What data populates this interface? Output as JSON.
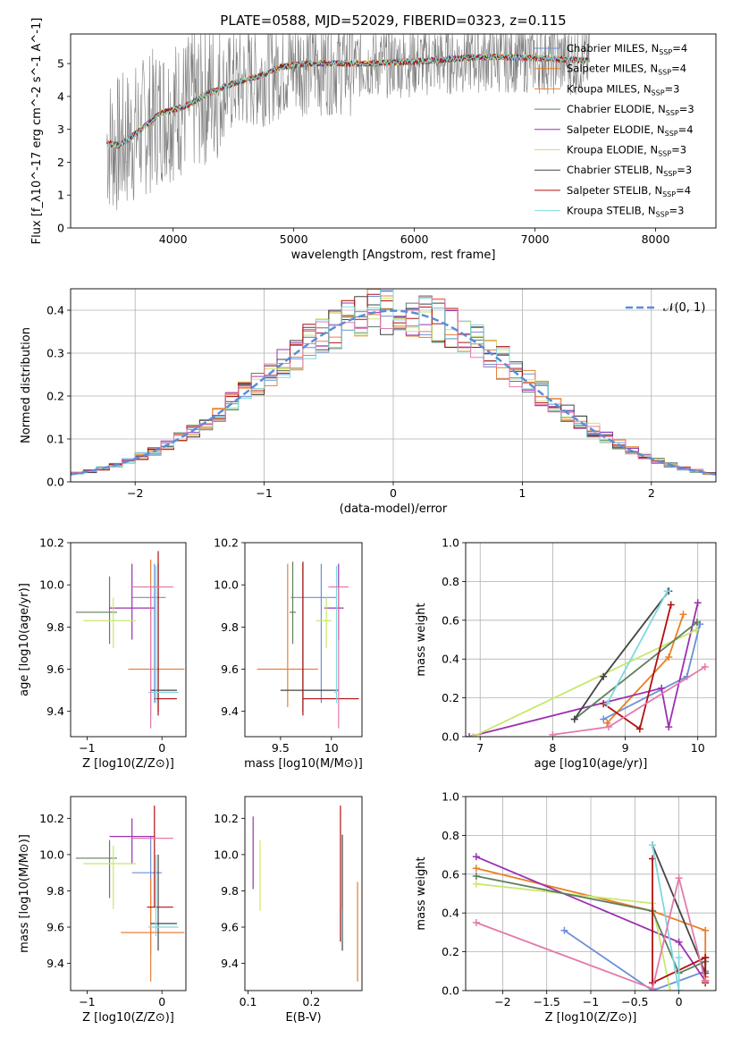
{
  "figure": {
    "title": "PLATE=0588, MJD=52029, FIBERID=0323, z=0.115"
  },
  "colors": {
    "Chabrier MILES": "#6b8fd6",
    "Salpeter MILES": "#e87f24",
    "Kroupa MILES": "#e8813a",
    "Chabrier ELODIE": "#5f7f5f",
    "Salpeter ELODIE": "#9b30b0",
    "Kroupa ELODIE": "#c8e86a",
    "Chabrier STELIB": "#444444",
    "Salpeter STELIB": "#b01010",
    "Kroupa STELIB": "#80d8e0",
    "extra_pink": "#e47aaa",
    "data": "#808080",
    "normal": "#5b8dd9"
  },
  "chart_data": [
    {
      "id": "spectrum",
      "type": "line",
      "xlabel": "wavelength [Angstrom, rest frame]",
      "ylabel": "Flux [f_λ10^-17 erg cm^-2 s^-1 A^-1]",
      "xlim": [
        3150,
        8500
      ],
      "ylim": [
        0,
        5.9
      ],
      "xticks": [
        4000,
        5000,
        6000,
        7000,
        8000
      ],
      "yticks": [
        0,
        1,
        2,
        3,
        4,
        5
      ],
      "legend_position": "upper-right",
      "legend": [
        {
          "name": "Chabrier MILES",
          "nssp": "4"
        },
        {
          "name": "Salpeter MILES",
          "nssp": "4"
        },
        {
          "name": "Kroupa MILES",
          "nssp": "3"
        },
        {
          "name": "Chabrier ELODIE",
          "nssp": "3"
        },
        {
          "name": "Salpeter ELODIE",
          "nssp": "4"
        },
        {
          "name": "Kroupa ELODIE",
          "nssp": "3"
        },
        {
          "name": "Chabrier STELIB",
          "nssp": "3"
        },
        {
          "name": "Salpeter STELIB",
          "nssp": "4"
        },
        {
          "name": "Kroupa STELIB",
          "nssp": "3"
        }
      ],
      "model_continuum": {
        "x": [
          3450,
          3550,
          3700,
          3800,
          3900,
          4000,
          4100,
          4300,
          4500,
          4700,
          4900,
          5100,
          5300,
          5600,
          5900,
          6200,
          6500,
          6800,
          7100,
          7400
        ],
        "y": [
          2.6,
          2.5,
          2.9,
          3.2,
          3.5,
          3.6,
          3.7,
          4.1,
          4.4,
          4.6,
          4.9,
          5.0,
          5.0,
          5.0,
          5.05,
          5.1,
          5.2,
          5.2,
          5.15,
          5.1
        ]
      },
      "data_range_x": [
        3450,
        7450
      ]
    },
    {
      "id": "residuals",
      "type": "histogram",
      "xlabel": "(data-model)/error",
      "ylabel": "Normed distribution",
      "xlim": [
        -2.5,
        2.5
      ],
      "ylim": [
        0,
        0.45
      ],
      "xticks": [
        -2,
        -1,
        0,
        1,
        2
      ],
      "yticks": [
        0.0,
        0.1,
        0.2,
        0.3,
        0.4
      ],
      "grid": true,
      "legend": "𝒩(0, 1)",
      "legend_position": "upper-right",
      "bin_width": 0.1,
      "bins_start": -2.5,
      "reference": "standard normal pdf"
    },
    {
      "id": "age_vs_Z",
      "type": "errorbar",
      "xlabel": "Z [log10(Z/Z⊙)]",
      "ylabel": "age [log10(age/yr)]",
      "xlim": [
        -1.22,
        0.32
      ],
      "ylim": [
        9.28,
        10.2
      ],
      "xticks": [
        -1,
        0
      ],
      "yticks": [
        9.4,
        9.6,
        9.8,
        10.0,
        10.2
      ],
      "points": [
        {
          "model": "Chabrier MILES",
          "x": -0.1,
          "y": 9.94,
          "xerr": [
            0.3,
            0.15
          ],
          "yerr": [
            0.5,
            0.16
          ]
        },
        {
          "model": "Kroupa MILES",
          "x": -0.15,
          "y": 9.6,
          "xerr": [
            0.3,
            0.45
          ],
          "yerr": [
            0.22,
            0.52
          ]
        },
        {
          "model": "Chabrier ELODIE",
          "x": -0.7,
          "y": 9.87,
          "xerr": [
            0.45,
            0.1
          ],
          "yerr": [
            0.15,
            0.17
          ]
        },
        {
          "model": "Salpeter ELODIE",
          "x": -0.4,
          "y": 9.89,
          "xerr": [
            0.3,
            0.3
          ],
          "yerr": [
            0.15,
            0.21
          ]
        },
        {
          "model": "Kroupa ELODIE",
          "x": -0.65,
          "y": 9.83,
          "xerr": [
            0.4,
            0.3
          ],
          "yerr": [
            0.13,
            0.11
          ]
        },
        {
          "model": "Chabrier STELIB",
          "x": -0.05,
          "y": 9.5,
          "xerr": [
            0.1,
            0.25
          ],
          "yerr": [
            0.1,
            0.6
          ]
        },
        {
          "model": "Salpeter STELIB",
          "x": -0.05,
          "y": 9.46,
          "xerr": [
            0.05,
            0.25
          ],
          "yerr": [
            0.08,
            0.7
          ]
        },
        {
          "model": "Kroupa STELIB",
          "x": -0.08,
          "y": 9.49,
          "xerr": [
            0.1,
            0.3
          ],
          "yerr": [
            0.05,
            0.6
          ]
        },
        {
          "model": "extra_pink",
          "x": -0.15,
          "y": 9.99,
          "xerr": [
            0.25,
            0.3
          ],
          "yerr": [
            0.67,
            0.0
          ]
        }
      ]
    },
    {
      "id": "age_vs_mass",
      "type": "errorbar",
      "xlabel": "mass [log10(M/M⊙)]",
      "ylabel": "",
      "xlim": [
        9.15,
        10.3
      ],
      "ylim": [
        9.28,
        10.2
      ],
      "xticks": [
        9.5,
        10.0
      ],
      "yticks": [
        9.4,
        9.6,
        9.8,
        10.0,
        10.2
      ],
      "points": [
        {
          "model": "Chabrier MILES",
          "x": 9.9,
          "y": 9.94,
          "xerr": [
            0.3,
            0.15
          ],
          "yerr": [
            0.5,
            0.16
          ]
        },
        {
          "model": "Kroupa MILES",
          "x": 9.57,
          "y": 9.6,
          "xerr": [
            0.3,
            0.3
          ],
          "yerr": [
            0.18,
            0.5
          ]
        },
        {
          "model": "Chabrier ELODIE",
          "x": 9.62,
          "y": 9.87,
          "xerr": [
            0.03,
            0.03
          ],
          "yerr": [
            0.15,
            0.24
          ]
        },
        {
          "model": "Salpeter ELODIE",
          "x": 10.07,
          "y": 9.89,
          "xerr": [
            0.14,
            0.05
          ],
          "yerr": [
            0.15,
            0.21
          ]
        },
        {
          "model": "Kroupa ELODIE",
          "x": 9.95,
          "y": 9.83,
          "xerr": [
            0.1,
            0.05
          ],
          "yerr": [
            0.13,
            0.11
          ]
        },
        {
          "model": "Chabrier STELIB",
          "x": 9.72,
          "y": 9.5,
          "xerr": [
            0.22,
            0.35
          ],
          "yerr": [
            0.1,
            0.6
          ]
        },
        {
          "model": "Salpeter STELIB",
          "x": 9.72,
          "y": 9.46,
          "xerr": [
            0.0,
            0.55
          ],
          "yerr": [
            0.08,
            0.65
          ]
        },
        {
          "model": "Kroupa STELIB",
          "x": 10.05,
          "y": 9.49,
          "xerr": [
            0.02,
            0.0
          ],
          "yerr": [
            0.05,
            0.6
          ]
        },
        {
          "model": "extra_pink",
          "x": 10.07,
          "y": 9.99,
          "xerr": [
            0.1,
            0.1
          ],
          "yerr": [
            0.67,
            0.0
          ]
        }
      ]
    },
    {
      "id": "weight_vs_age",
      "type": "line",
      "xlabel": "age [log10(age/yr)]",
      "ylabel": "mass weight",
      "xlim": [
        6.8,
        10.25
      ],
      "ylim": [
        0.0,
        1.0
      ],
      "xticks": [
        7,
        8,
        9,
        10
      ],
      "yticks": [
        0.0,
        0.2,
        0.4,
        0.6,
        0.8,
        1.0
      ],
      "grid": true,
      "series": [
        {
          "model": "Chabrier MILES",
          "x": [
            8.7,
            9.85,
            10.03
          ],
          "y": [
            0.09,
            0.31,
            0.58
          ]
        },
        {
          "model": "Salpeter MILES",
          "x": [
            8.75,
            9.6,
            9.8
          ],
          "y": [
            0.07,
            0.41,
            0.63
          ]
        },
        {
          "model": "Salpeter ELODIE",
          "x": [
            6.85,
            9.5,
            9.6,
            10.0
          ],
          "y": [
            0.0,
            0.25,
            0.05,
            0.69
          ]
        },
        {
          "model": "Kroupa ELODIE",
          "x": [
            6.9,
            9.98
          ],
          "y": [
            0.0,
            0.55
          ]
        },
        {
          "model": "Chabrier ELODIE",
          "x": [
            8.3,
            9.99
          ],
          "y": [
            0.09,
            0.59
          ]
        },
        {
          "model": "Chabrier STELIB",
          "x": [
            8.3,
            8.7,
            9.6
          ],
          "y": [
            0.09,
            0.31,
            0.75
          ]
        },
        {
          "model": "Salpeter STELIB",
          "x": [
            8.7,
            9.2,
            9.63
          ],
          "y": [
            0.17,
            0.04,
            0.68
          ]
        },
        {
          "model": "Kroupa STELIB",
          "x": [
            8.75,
            9.58
          ],
          "y": [
            0.17,
            0.75
          ]
        },
        {
          "model": "extra_pink",
          "x": [
            8.0,
            8.77,
            10.1
          ],
          "y": [
            0.01,
            0.05,
            0.36
          ]
        }
      ]
    },
    {
      "id": "mass_vs_Z",
      "type": "errorbar",
      "xlabel": "Z [log10(Z/Z⊙)]",
      "ylabel": "mass [log10(M/M⊙)]",
      "xlim": [
        -1.22,
        0.32
      ],
      "ylim": [
        9.25,
        10.32
      ],
      "xticks": [
        -1,
        0
      ],
      "yticks": [
        9.4,
        9.6,
        9.8,
        10.0,
        10.2
      ],
      "points": [
        {
          "model": "Chabrier MILES",
          "x": -0.15,
          "y": 9.9,
          "xerr": [
            0.25,
            0.15
          ],
          "yerr": [
            0.45,
            0.2
          ]
        },
        {
          "model": "Kroupa MILES",
          "x": -0.15,
          "y": 9.57,
          "xerr": [
            0.4,
            0.45
          ],
          "yerr": [
            0.27,
            0.3
          ]
        },
        {
          "model": "Chabrier ELODIE",
          "x": -0.7,
          "y": 9.98,
          "xerr": [
            0.45,
            0.1
          ],
          "yerr": [
            0.22,
            0.1
          ]
        },
        {
          "model": "Salpeter ELODIE",
          "x": -0.4,
          "y": 10.1,
          "xerr": [
            0.3,
            0.3
          ],
          "yerr": [
            0.15,
            0.1
          ]
        },
        {
          "model": "Kroupa ELODIE",
          "x": -0.65,
          "y": 9.95,
          "xerr": [
            0.4,
            0.3
          ],
          "yerr": [
            0.25,
            0.1
          ]
        },
        {
          "model": "Chabrier STELIB",
          "x": -0.05,
          "y": 9.62,
          "xerr": [
            0.1,
            0.25
          ],
          "yerr": [
            0.15,
            0.38
          ]
        },
        {
          "model": "Salpeter STELIB",
          "x": -0.1,
          "y": 9.71,
          "xerr": [
            0.1,
            0.25
          ],
          "yerr": [
            0.0,
            0.56
          ]
        },
        {
          "model": "Kroupa STELIB",
          "x": -0.08,
          "y": 9.6,
          "xerr": [
            0.1,
            0.3
          ],
          "yerr": [
            0.05,
            0.4
          ]
        },
        {
          "model": "extra_pink",
          "x": -0.15,
          "y": 10.09,
          "xerr": [
            0.25,
            0.3
          ],
          "yerr": [
            0.0,
            0.0
          ]
        }
      ]
    },
    {
      "id": "mass_vs_ebv",
      "type": "errorbar",
      "xlabel": "E(B-V)",
      "ylabel": "",
      "xlim": [
        0.095,
        0.28
      ],
      "ylim": [
        9.25,
        10.32
      ],
      "xticks": [
        0.1,
        0.2
      ],
      "yticks": [
        9.4,
        9.6,
        9.8,
        10.0,
        10.2
      ],
      "points": [
        {
          "model": "Salpeter ELODIE",
          "x": 0.108,
          "y": 10.01,
          "xerr": [
            0,
            0
          ],
          "yerr": [
            0.2,
            0.2
          ]
        },
        {
          "model": "Kroupa ELODIE",
          "x": 0.119,
          "y": 9.88,
          "xerr": [
            0,
            0
          ],
          "yerr": [
            0.19,
            0.2
          ]
        },
        {
          "model": "Chabrier STELIB",
          "x": 0.249,
          "y": 9.78,
          "xerr": [
            0,
            0
          ],
          "yerr": [
            0.31,
            0.33
          ]
        },
        {
          "model": "Salpeter STELIB",
          "x": 0.246,
          "y": 9.9,
          "xerr": [
            0,
            0
          ],
          "yerr": [
            0.38,
            0.37
          ]
        },
        {
          "model": "Kroupa STELIB",
          "x": 0.248,
          "y": 9.6,
          "xerr": [
            0,
            0
          ],
          "yerr": [
            0.08,
            0.1
          ]
        },
        {
          "model": "Salpeter MILES",
          "x": 0.273,
          "y": 9.57,
          "xerr": [
            0,
            0
          ],
          "yerr": [
            0.27,
            0.28
          ]
        }
      ]
    },
    {
      "id": "weight_vs_Z",
      "type": "line",
      "xlabel": "Z [log10(Z/Z⊙)]",
      "ylabel": "mass weight",
      "xlim": [
        -2.42,
        0.42
      ],
      "ylim": [
        0.0,
        1.0
      ],
      "xticks": [
        -2.0,
        -1.5,
        -1.0,
        -0.5,
        0.0
      ],
      "yticks": [
        0.0,
        0.2,
        0.4,
        0.6,
        0.8,
        1.0
      ],
      "grid": true,
      "series": [
        {
          "model": "Chabrier MILES",
          "x": [
            -1.3,
            -0.3,
            0.3
          ],
          "y": [
            0.31,
            0.0,
            0.1
          ]
        },
        {
          "model": "Salpeter MILES",
          "x": [
            -2.3,
            -0.3,
            0.3,
            0.3
          ],
          "y": [
            0.63,
            0.41,
            0.31,
            0.07
          ]
        },
        {
          "model": "Salpeter ELODIE",
          "x": [
            -2.3,
            0.0,
            0.3,
            0.3
          ],
          "y": [
            0.69,
            0.25,
            0.05,
            0.05
          ]
        },
        {
          "model": "Kroupa ELODIE",
          "x": [
            -2.3,
            -0.3,
            -0.1
          ],
          "y": [
            0.55,
            0.45,
            0.0
          ]
        },
        {
          "model": "Chabrier ELODIE",
          "x": [
            -2.3,
            -0.3,
            0.0,
            0.3
          ],
          "y": [
            0.59,
            0.41,
            0.09,
            0.15
          ]
        },
        {
          "model": "Chabrier STELIB",
          "x": [
            -0.3,
            0.3,
            0.3
          ],
          "y": [
            0.75,
            0.09,
            0.17
          ]
        },
        {
          "model": "Salpeter STELIB",
          "x": [
            -0.3,
            -0.3,
            0.3,
            0.3
          ],
          "y": [
            0.68,
            0.04,
            0.17,
            0.04
          ]
        },
        {
          "model": "Kroupa STELIB",
          "x": [
            -0.3,
            0.0,
            0.0
          ],
          "y": [
            0.75,
            0.0,
            0.17
          ]
        },
        {
          "model": "extra_pink",
          "x": [
            -2.3,
            -0.3,
            0.0,
            0.3
          ],
          "y": [
            0.35,
            0.01,
            0.58,
            0.05
          ]
        }
      ]
    }
  ]
}
